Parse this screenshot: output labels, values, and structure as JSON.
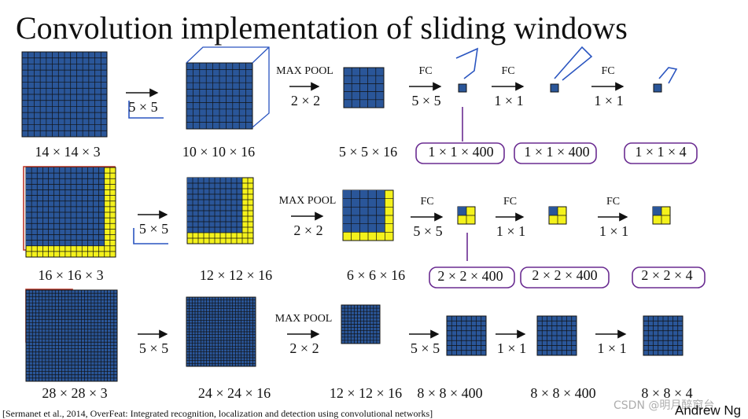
{
  "title": "Convolution implementation of sliding windows",
  "rows": [
    {
      "shapes": [
        "14 × 14 × 3",
        "10 × 10 × 16",
        "5 × 5 × 16",
        "1 × 1 × 400",
        "1 × 1 × 400",
        "1 × 1 × 4"
      ],
      "steps": [
        {
          "label": "5 × 5"
        },
        {
          "op": "MAX POOL",
          "label": "2 × 2"
        },
        {
          "op": "FC",
          "label": "5 × 5"
        },
        {
          "op": "FC",
          "label": "1 × 1"
        },
        {
          "op": "FC",
          "label": "1 × 1"
        }
      ]
    },
    {
      "shapes": [
        "16 × 16 × 3",
        "12 × 12 × 16",
        "6 × 6 × 16",
        "2 × 2 × 400",
        "2 × 2 × 400",
        "2 × 2 × 4"
      ],
      "steps": [
        {
          "label": "5 × 5"
        },
        {
          "op": "MAX POOL",
          "label": "2 × 2"
        },
        {
          "op": "FC",
          "label": "5 × 5"
        },
        {
          "op": "FC",
          "label": "1 × 1"
        },
        {
          "op": "FC",
          "label": "1 × 1"
        }
      ]
    },
    {
      "shapes": [
        "28 × 28 × 3",
        "24 × 24 × 16",
        "12 × 12 × 16",
        "8 × 8 × 400",
        "8 × 8 × 400",
        "8 × 8 × 4"
      ],
      "steps": [
        {
          "label": "5 × 5"
        },
        {
          "op": "MAX POOL",
          "label": "2 × 2"
        },
        {
          "label": "5 × 5"
        },
        {
          "label": "1 × 1"
        },
        {
          "label": "1 × 1"
        }
      ]
    }
  ],
  "citation": "[Sermanet et al., 2014, OverFeat: Integrated recognition, localization and detection using convolutional networks]",
  "author": "Andrew Ng",
  "watermark": "CSDN @明月醉窗台"
}
